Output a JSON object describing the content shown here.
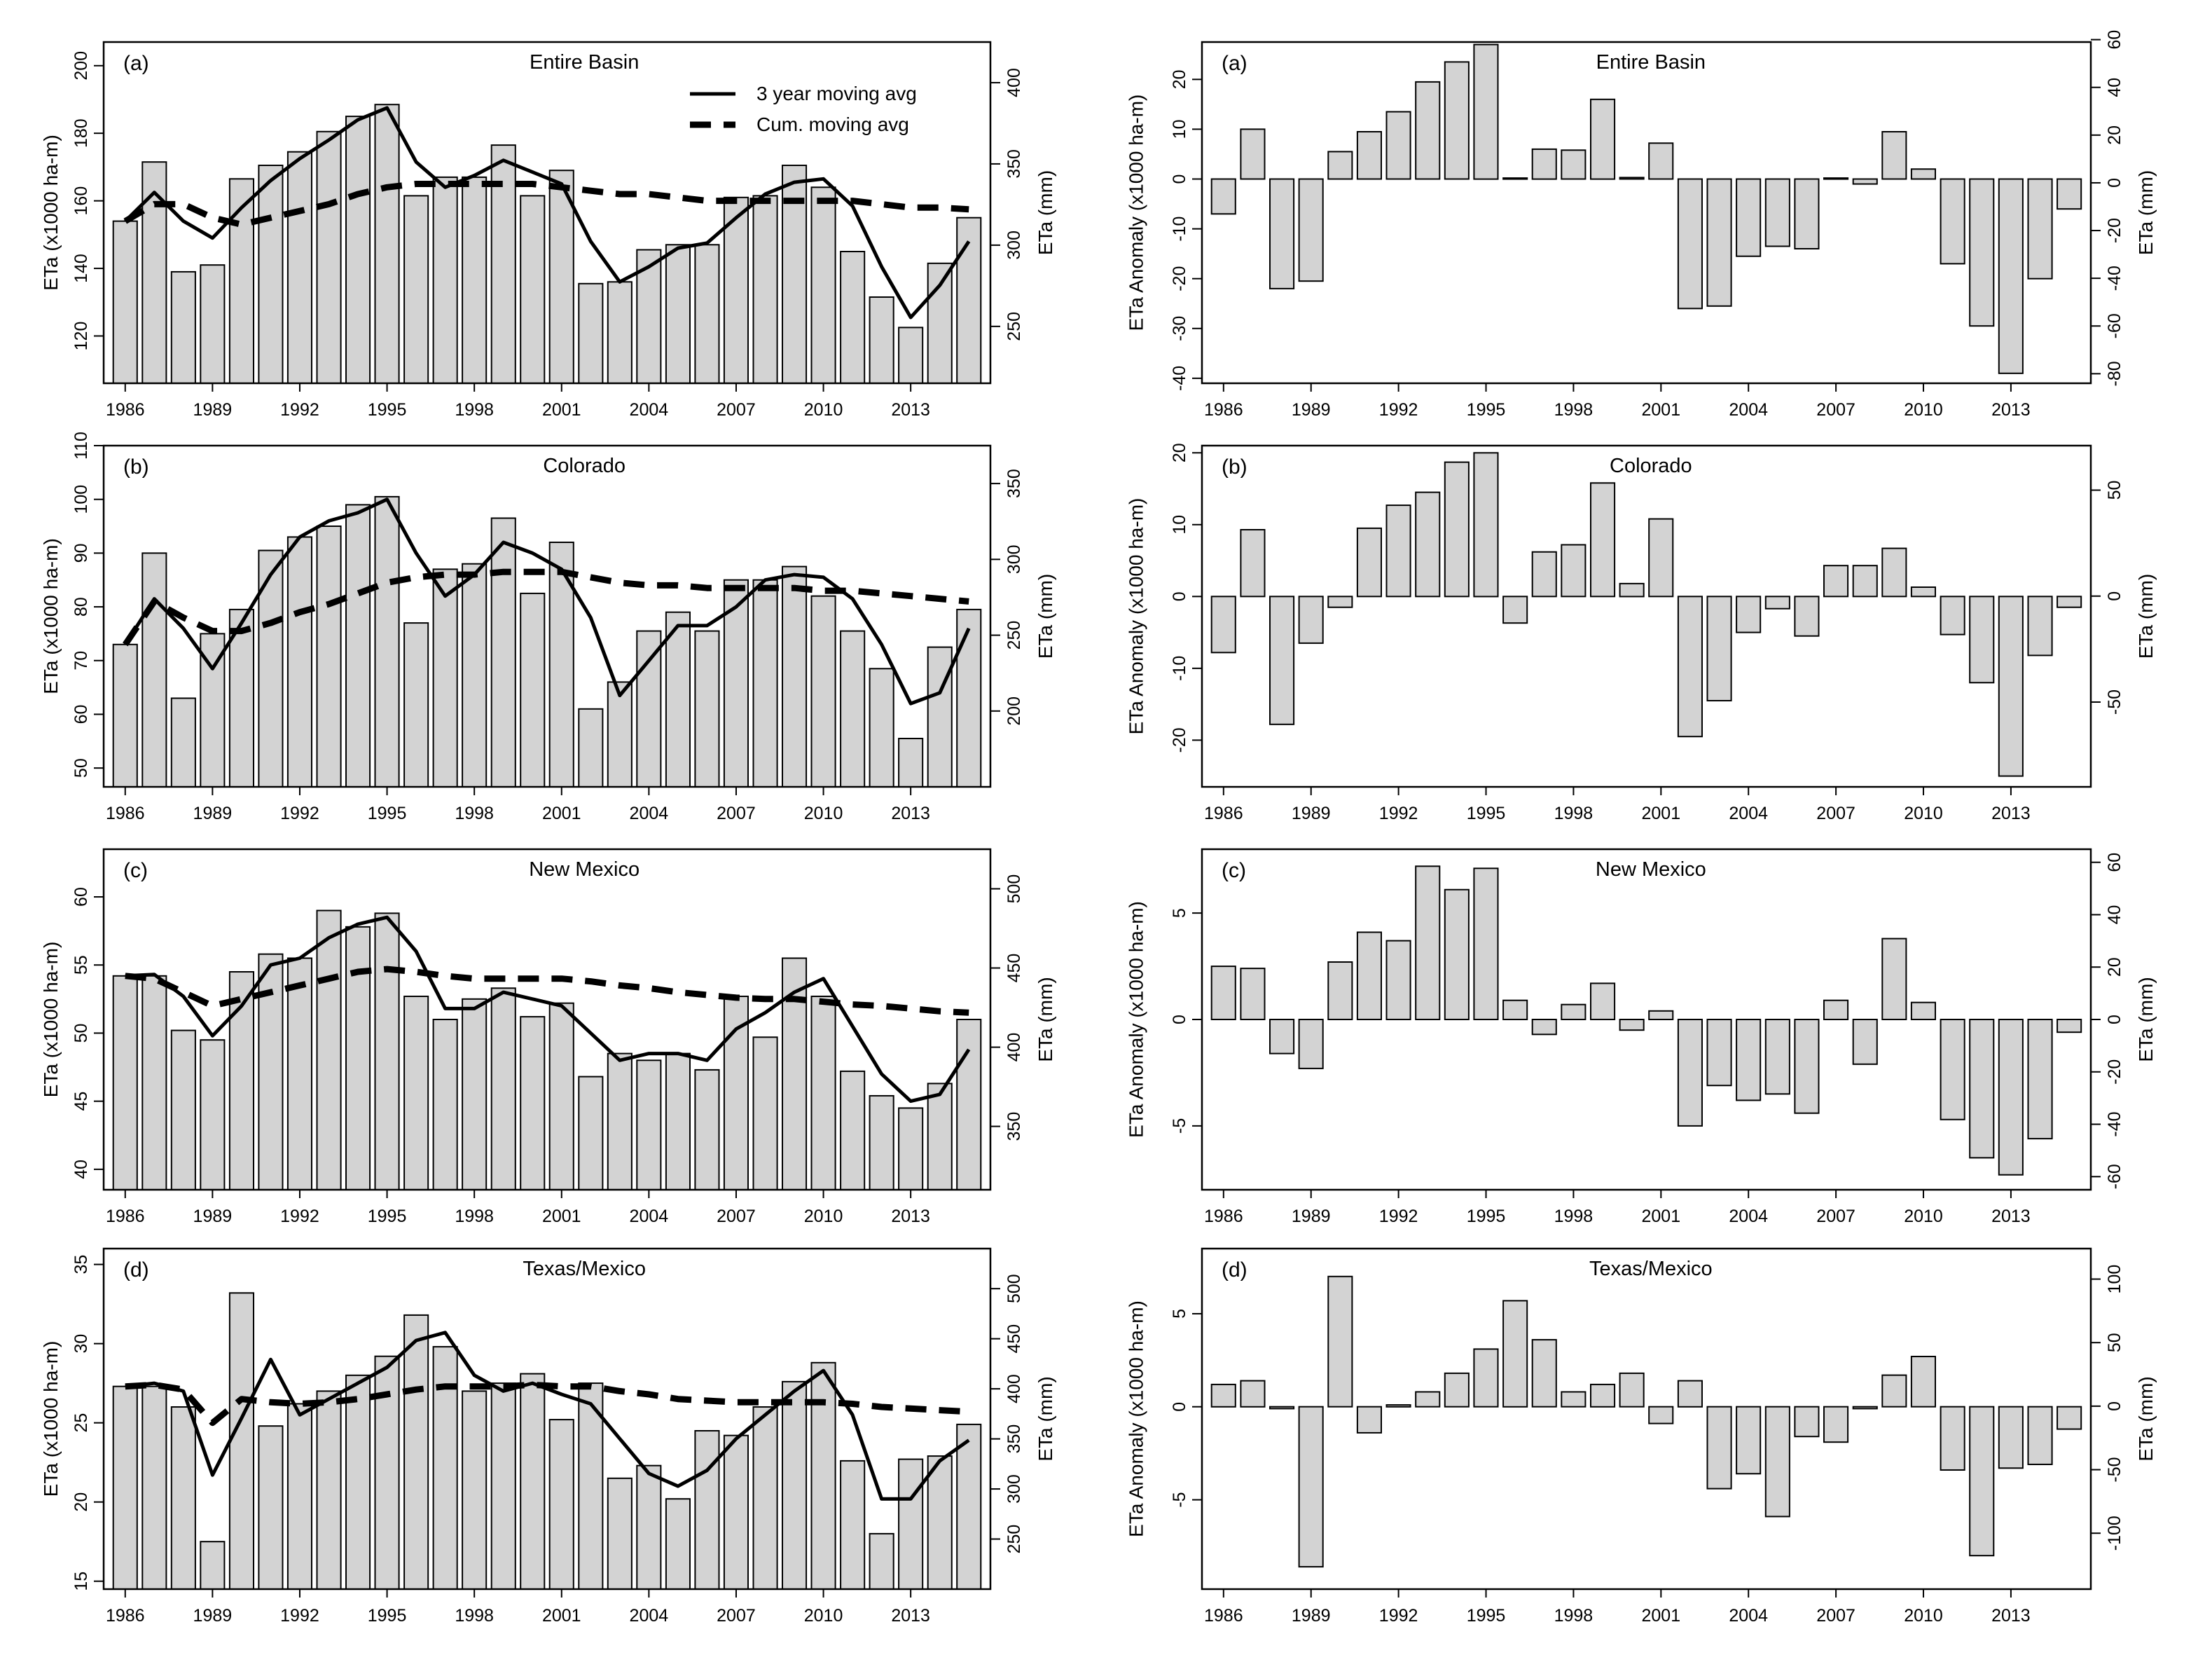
{
  "colors": {
    "bar_fill": "#d3d3d3",
    "bar_stroke": "#000000",
    "line": "#000000"
  },
  "chart_data": [
    {
      "id": "left-a",
      "type": "bar",
      "panel_label": "(a)",
      "title": "Entire Basin",
      "ylabel": "ETa (x1000 ha-m)",
      "y2label": "ETa (mm)",
      "ylim": [
        106,
        207
      ],
      "yticks": [
        120,
        140,
        160,
        180,
        200
      ],
      "y2lim": [
        215,
        425
      ],
      "y2ticks": [
        250,
        300,
        350,
        400
      ],
      "xticks": [
        1986,
        1989,
        1992,
        1995,
        1998,
        2001,
        2004,
        2007,
        2010,
        2013
      ],
      "categories": [
        1986,
        1987,
        1988,
        1989,
        1990,
        1991,
        1992,
        1993,
        1994,
        1995,
        1996,
        1997,
        1998,
        1999,
        2000,
        2001,
        2002,
        2003,
        2004,
        2005,
        2006,
        2007,
        2008,
        2009,
        2010,
        2011,
        2012,
        2013,
        2014,
        2015
      ],
      "series": [
        {
          "name": "ETa",
          "kind": "bar",
          "values": [
            154,
            171.5,
            139,
            141,
            166.5,
            170.5,
            174.5,
            180.5,
            185,
            188.5,
            161.5,
            167,
            167,
            176.5,
            161.5,
            169,
            135.5,
            136,
            145.5,
            147,
            147,
            161,
            161.5,
            170.5,
            164,
            145,
            131.5,
            122.5,
            141.5,
            155
          ]
        },
        {
          "name": "3 year moving avg",
          "kind": "line",
          "values": [
            154,
            162.5,
            154,
            149,
            158,
            166,
            172.5,
            178,
            184,
            187.5,
            171.5,
            164,
            167.5,
            172,
            168.5,
            165,
            148,
            136,
            140.5,
            146,
            147.5,
            155,
            162,
            165.5,
            166.5,
            158.5,
            140.5,
            125.5,
            135,
            148
          ]
        },
        {
          "name": "Cum. moving avg",
          "kind": "dashed",
          "values": [
            154,
            159,
            159,
            155,
            153,
            155,
            157,
            159,
            162,
            164,
            165,
            165,
            165,
            165,
            165,
            164,
            163,
            162,
            162,
            161,
            160,
            160,
            160,
            160,
            160,
            160,
            159,
            158,
            158,
            157.5
          ]
        }
      ],
      "legend": [
        "3 year moving avg",
        "Cum. moving avg"
      ]
    },
    {
      "id": "right-a",
      "type": "bar",
      "panel_label": "(a)",
      "title": "Entire Basin",
      "ylabel": "ETa Anomaly (x1000 ha-m)",
      "y2label": "ETa (mm)",
      "ylim": [
        -41,
        27.5
      ],
      "yticks": [
        -40,
        -30,
        -20,
        -10,
        0,
        10,
        20
      ],
      "y2lim": [
        -84,
        59
      ],
      "y2ticks": [
        -80,
        -60,
        -40,
        -20,
        0,
        20,
        40,
        60
      ],
      "xticks": [
        1986,
        1989,
        1992,
        1995,
        1998,
        2001,
        2004,
        2007,
        2010,
        2013
      ],
      "categories": [
        1986,
        1987,
        1988,
        1989,
        1990,
        1991,
        1992,
        1993,
        1994,
        1995,
        1996,
        1997,
        1998,
        1999,
        2000,
        2001,
        2002,
        2003,
        2004,
        2005,
        2006,
        2007,
        2008,
        2009,
        2010,
        2011,
        2012,
        2013,
        2014,
        2015
      ],
      "series": [
        {
          "name": "ETa Anomaly",
          "kind": "bar",
          "values": [
            -7,
            10,
            -22,
            -20.5,
            5.5,
            9.5,
            13.5,
            19.5,
            23.5,
            27,
            0.2,
            6,
            5.8,
            16,
            0.3,
            7.2,
            -26,
            -25.5,
            -15.5,
            -13.5,
            -14,
            0.2,
            -1,
            9.5,
            2,
            -17,
            -29.5,
            -39,
            -20,
            -6
          ]
        }
      ]
    },
    {
      "id": "left-b",
      "type": "bar",
      "panel_label": "(b)",
      "title": "Colorado",
      "ylabel": "ETa (x1000 ha-m)",
      "y2label": "ETa (mm)",
      "ylim": [
        46.5,
        110
      ],
      "yticks": [
        50,
        60,
        70,
        80,
        90,
        100,
        110
      ],
      "y2lim": [
        150,
        375
      ],
      "y2ticks": [
        200,
        250,
        300,
        350
      ],
      "xticks": [
        1986,
        1989,
        1992,
        1995,
        1998,
        2001,
        2004,
        2007,
        2010,
        2013
      ],
      "categories": [
        1986,
        1987,
        1988,
        1989,
        1990,
        1991,
        1992,
        1993,
        1994,
        1995,
        1996,
        1997,
        1998,
        1999,
        2000,
        2001,
        2002,
        2003,
        2004,
        2005,
        2006,
        2007,
        2008,
        2009,
        2010,
        2011,
        2012,
        2013,
        2014,
        2015
      ],
      "series": [
        {
          "name": "ETa",
          "kind": "bar",
          "values": [
            73,
            90,
            63,
            75,
            79.5,
            90.5,
            93,
            95,
            99,
            100.5,
            77,
            87,
            88,
            96.5,
            82.5,
            92,
            61,
            66,
            75.5,
            79,
            75.5,
            85,
            85,
            87.5,
            82,
            75.5,
            68.5,
            55.5,
            72.5,
            79.5
          ]
        },
        {
          "name": "3 year moving avg",
          "kind": "line",
          "values": [
            73,
            81.5,
            76,
            68.5,
            77,
            86,
            93,
            96,
            97.5,
            100,
            90,
            82,
            86,
            92,
            90,
            87,
            78,
            63.5,
            70,
            76.5,
            76.5,
            80,
            85,
            86,
            85.5,
            81.5,
            73,
            62,
            64,
            76
          ]
        },
        {
          "name": "Cum. moving avg",
          "kind": "dashed",
          "values": [
            73,
            81,
            78,
            75.5,
            75.5,
            77,
            79,
            80.5,
            82.5,
            84.5,
            85.5,
            86,
            86,
            86.5,
            86.5,
            86.5,
            85.5,
            84.5,
            84,
            84,
            83.5,
            83.5,
            83.5,
            83.5,
            83,
            83,
            82.5,
            82,
            81.5,
            81
          ]
        }
      ]
    },
    {
      "id": "right-b",
      "type": "bar",
      "panel_label": "(b)",
      "title": "Colorado",
      "ylabel": "ETa Anomaly (x1000 ha-m)",
      "y2label": "ETa (mm)",
      "ylim": [
        -26.5,
        21
      ],
      "yticks": [
        -20,
        -10,
        0,
        10,
        20
      ],
      "y2lim": [
        -90,
        71
      ],
      "y2ticks": [
        -50,
        0,
        50
      ],
      "xticks": [
        1986,
        1989,
        1992,
        1995,
        1998,
        2001,
        2004,
        2007,
        2010,
        2013
      ],
      "categories": [
        1986,
        1987,
        1988,
        1989,
        1990,
        1991,
        1992,
        1993,
        1994,
        1995,
        1996,
        1997,
        1998,
        1999,
        2000,
        2001,
        2002,
        2003,
        2004,
        2005,
        2006,
        2007,
        2008,
        2009,
        2010,
        2011,
        2012,
        2013,
        2014,
        2015
      ],
      "series": [
        {
          "name": "ETa Anomaly",
          "kind": "bar",
          "values": [
            -7.8,
            9.3,
            -17.8,
            -6.5,
            -1.5,
            9.5,
            12.7,
            14.5,
            18.7,
            20,
            -3.7,
            6.2,
            7.2,
            15.8,
            1.8,
            10.8,
            -19.5,
            -14.5,
            -5,
            -1.7,
            -5.5,
            4.3,
            4.3,
            6.7,
            1.3,
            -5.3,
            -12,
            -25,
            -8.2,
            -1.5
          ]
        }
      ]
    },
    {
      "id": "left-c",
      "type": "bar",
      "panel_label": "(c)",
      "title": "New Mexico",
      "ylabel": "ETa (x1000 ha-m)",
      "y2label": "ETa (mm)",
      "ylim": [
        38.5,
        63.5
      ],
      "yticks": [
        40,
        45,
        50,
        55,
        60
      ],
      "y2lim": [
        310,
        525
      ],
      "y2ticks": [
        350,
        400,
        450,
        500
      ],
      "xticks": [
        1986,
        1989,
        1992,
        1995,
        1998,
        2001,
        2004,
        2007,
        2010,
        2013
      ],
      "categories": [
        1986,
        1987,
        1988,
        1989,
        1990,
        1991,
        1992,
        1993,
        1994,
        1995,
        1996,
        1997,
        1998,
        1999,
        2000,
        2001,
        2002,
        2003,
        2004,
        2005,
        2006,
        2007,
        2008,
        2009,
        2010,
        2011,
        2012,
        2013,
        2014,
        2015
      ],
      "series": [
        {
          "name": "ETa",
          "kind": "bar",
          "values": [
            54.2,
            54.2,
            50.2,
            49.5,
            54.5,
            55.8,
            55.5,
            59,
            57.8,
            58.8,
            52.7,
            51,
            52.5,
            53.3,
            51.2,
            52.2,
            46.8,
            48.5,
            48,
            48.5,
            47.3,
            52.7,
            49.7,
            55.5,
            52.7,
            47.2,
            45.4,
            44.5,
            46.3,
            51
          ]
        },
        {
          "name": "3 year moving avg",
          "kind": "line",
          "values": [
            54.2,
            54.3,
            52.7,
            49.8,
            52,
            55,
            55.5,
            57,
            58,
            58.5,
            56,
            51.8,
            51.8,
            53,
            52.5,
            52,
            50,
            48,
            48.5,
            48.5,
            48,
            50.3,
            51.5,
            53,
            54,
            50.5,
            47,
            45,
            45.5,
            48.8
          ]
        },
        {
          "name": "Cum. moving avg",
          "kind": "dashed",
          "values": [
            54.2,
            54,
            53,
            52,
            52.5,
            53,
            53.5,
            54,
            54.5,
            54.7,
            54.5,
            54.2,
            54,
            54,
            54,
            54,
            53.8,
            53.5,
            53.3,
            53,
            52.8,
            52.6,
            52.5,
            52.5,
            52.3,
            52.1,
            52,
            51.8,
            51.6,
            51.5
          ]
        }
      ]
    },
    {
      "id": "right-c",
      "type": "bar",
      "panel_label": "(c)",
      "title": "New Mexico",
      "ylabel": "ETa Anomaly (x1000 ha-m)",
      "y2label": "ETa (mm)",
      "ylim": [
        -8,
        8
      ],
      "yticks": [
        -5,
        0,
        5
      ],
      "y2lim": [
        -65,
        65
      ],
      "y2ticks": [
        -60,
        -40,
        -20,
        0,
        20,
        40,
        60
      ],
      "xticks": [
        1986,
        1989,
        1992,
        1995,
        1998,
        2001,
        2004,
        2007,
        2010,
        2013
      ],
      "categories": [
        1986,
        1987,
        1988,
        1989,
        1990,
        1991,
        1992,
        1993,
        1994,
        1995,
        1996,
        1997,
        1998,
        1999,
        2000,
        2001,
        2002,
        2003,
        2004,
        2005,
        2006,
        2007,
        2008,
        2009,
        2010,
        2011,
        2012,
        2013,
        2014,
        2015
      ],
      "series": [
        {
          "name": "ETa Anomaly",
          "kind": "bar",
          "values": [
            2.5,
            2.4,
            -1.6,
            -2.3,
            2.7,
            4.1,
            3.7,
            7.2,
            6.1,
            7.1,
            0.9,
            -0.7,
            0.7,
            1.7,
            -0.5,
            0.4,
            -5,
            -3.1,
            -3.8,
            -3.5,
            -4.4,
            0.9,
            -2.1,
            3.8,
            0.8,
            -4.7,
            -6.5,
            -7.3,
            -5.6,
            -0.6
          ]
        }
      ]
    },
    {
      "id": "left-d",
      "type": "bar",
      "panel_label": "(d)",
      "title": "Texas/Mexico",
      "ylabel": "ETa (x1000 ha-m)",
      "y2label": "ETa (mm)",
      "ylim": [
        14.5,
        36
      ],
      "yticks": [
        15,
        20,
        25,
        30,
        35
      ],
      "y2lim": [
        200,
        540
      ],
      "y2ticks": [
        250,
        300,
        350,
        400,
        450,
        500
      ],
      "xticks": [
        1986,
        1989,
        1992,
        1995,
        1998,
        2001,
        2004,
        2007,
        2010,
        2013
      ],
      "categories": [
        1986,
        1987,
        1988,
        1989,
        1990,
        1991,
        1992,
        1993,
        1994,
        1995,
        1996,
        1997,
        1998,
        1999,
        2000,
        2001,
        2002,
        2003,
        2004,
        2005,
        2006,
        2007,
        2008,
        2009,
        2010,
        2011,
        2012,
        2013,
        2014,
        2015
      ],
      "series": [
        {
          "name": "ETa",
          "kind": "bar",
          "values": [
            27.3,
            27.3,
            26,
            17.5,
            33.2,
            24.8,
            26.2,
            27,
            28,
            29.2,
            31.8,
            29.8,
            27,
            27.5,
            28.1,
            25.2,
            27.5,
            21.5,
            22.3,
            20.2,
            24.5,
            24.2,
            26,
            27.6,
            28.8,
            22.6,
            18,
            22.7,
            22.9,
            24.9
          ]
        },
        {
          "name": "3 year moving avg",
          "kind": "line",
          "values": [
            27.3,
            27.5,
            27,
            21.7,
            25.3,
            29,
            25.5,
            26.5,
            27.5,
            28.5,
            30.2,
            30.7,
            28,
            27,
            27.5,
            26.8,
            26.2,
            24,
            21.8,
            21,
            22,
            24,
            25.5,
            27,
            28.3,
            25.5,
            20.2,
            20.2,
            22.6,
            23.9
          ]
        },
        {
          "name": "Cum. moving avg",
          "kind": "dashed",
          "values": [
            27.3,
            27.4,
            27.1,
            25,
            26.5,
            26.3,
            26.2,
            26.3,
            26.5,
            26.8,
            27.1,
            27.3,
            27.3,
            27.3,
            27.4,
            27.3,
            27.3,
            27,
            26.8,
            26.5,
            26.4,
            26.3,
            26.3,
            26.3,
            26.3,
            26.2,
            26,
            25.9,
            25.8,
            25.7
          ]
        }
      ]
    },
    {
      "id": "right-d",
      "type": "bar",
      "panel_label": "(d)",
      "title": "Texas/Mexico",
      "ylabel": "ETa Anomaly (x1000 ha-m)",
      "y2label": "ETa (mm)",
      "ylim": [
        -9.8,
        8.5
      ],
      "yticks": [
        -5,
        0,
        5
      ],
      "y2lim": [
        -144,
        124
      ],
      "y2ticks": [
        -100,
        -50,
        0,
        50,
        100
      ],
      "xticks": [
        1986,
        1989,
        1992,
        1995,
        1998,
        2001,
        2004,
        2007,
        2010,
        2013
      ],
      "categories": [
        1986,
        1987,
        1988,
        1989,
        1990,
        1991,
        1992,
        1993,
        1994,
        1995,
        1996,
        1997,
        1998,
        1999,
        2000,
        2001,
        2002,
        2003,
        2004,
        2005,
        2006,
        2007,
        2008,
        2009,
        2010,
        2011,
        2012,
        2013,
        2014,
        2015
      ],
      "series": [
        {
          "name": "ETa Anomaly",
          "kind": "bar",
          "values": [
            1.2,
            1.4,
            -0.1,
            -8.6,
            7,
            -1.4,
            0.1,
            0.8,
            1.8,
            3.1,
            5.7,
            3.6,
            0.8,
            1.2,
            1.8,
            -0.9,
            1.4,
            -4.4,
            -3.6,
            -5.9,
            -1.6,
            -1.9,
            -0.1,
            1.7,
            2.7,
            -3.4,
            -8,
            -3.3,
            -3.1,
            -1.2
          ]
        }
      ]
    }
  ]
}
